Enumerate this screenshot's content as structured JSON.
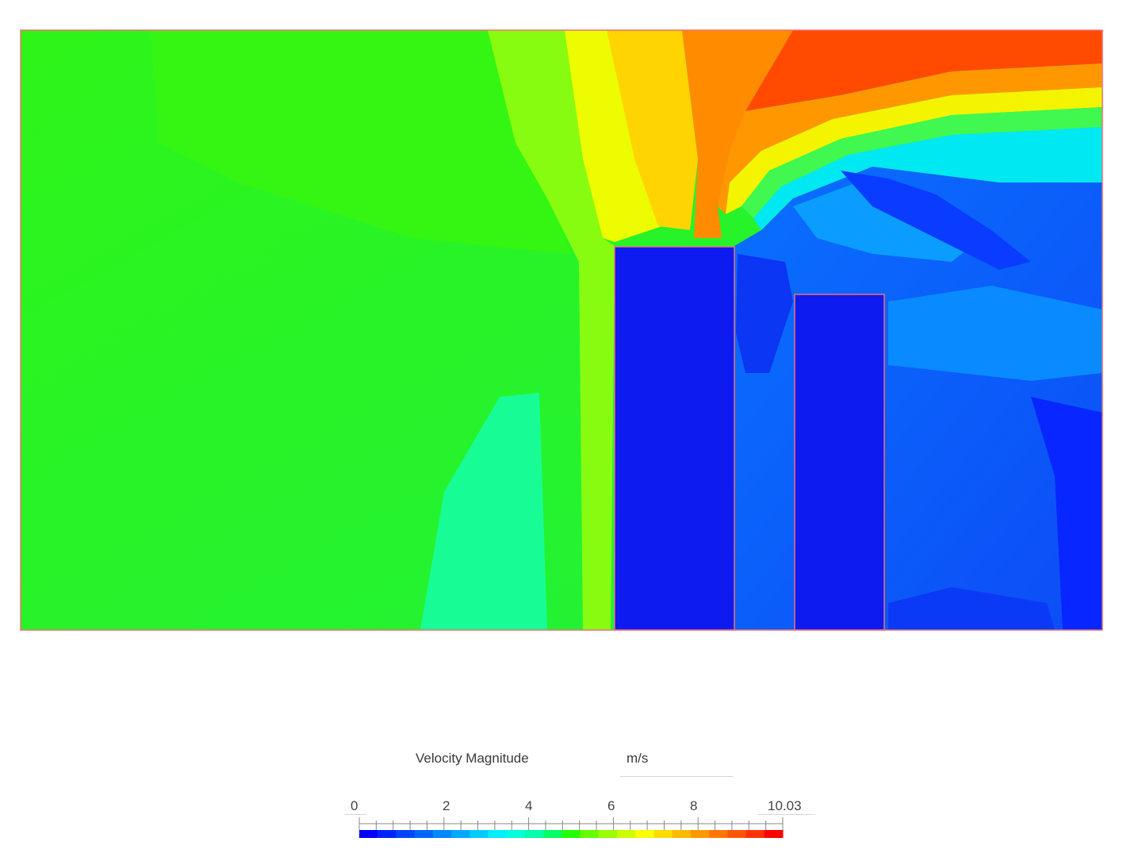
{
  "legend": {
    "title": "Velocity Magnitude",
    "unit": "m/s",
    "min": "0",
    "max": "10.03",
    "tick_labels": [
      "2",
      "4",
      "6",
      "8"
    ],
    "colors": [
      "#0000ff",
      "#0022ff",
      "#0044ff",
      "#0066ff",
      "#0088ff",
      "#00aaff",
      "#00ccff",
      "#00eeff",
      "#00ffdd",
      "#00ffaa",
      "#00ff66",
      "#22ff00",
      "#66ff00",
      "#99ff00",
      "#ccff00",
      "#ffff00",
      "#ffdd00",
      "#ffbb00",
      "#ff9900",
      "#ff7700",
      "#ff5500",
      "#ff3300",
      "#ff0000"
    ]
  },
  "field_colors": {
    "background_green": "#22f22a",
    "slow_blue": "#0d1bf0",
    "outline": "#f07070"
  }
}
